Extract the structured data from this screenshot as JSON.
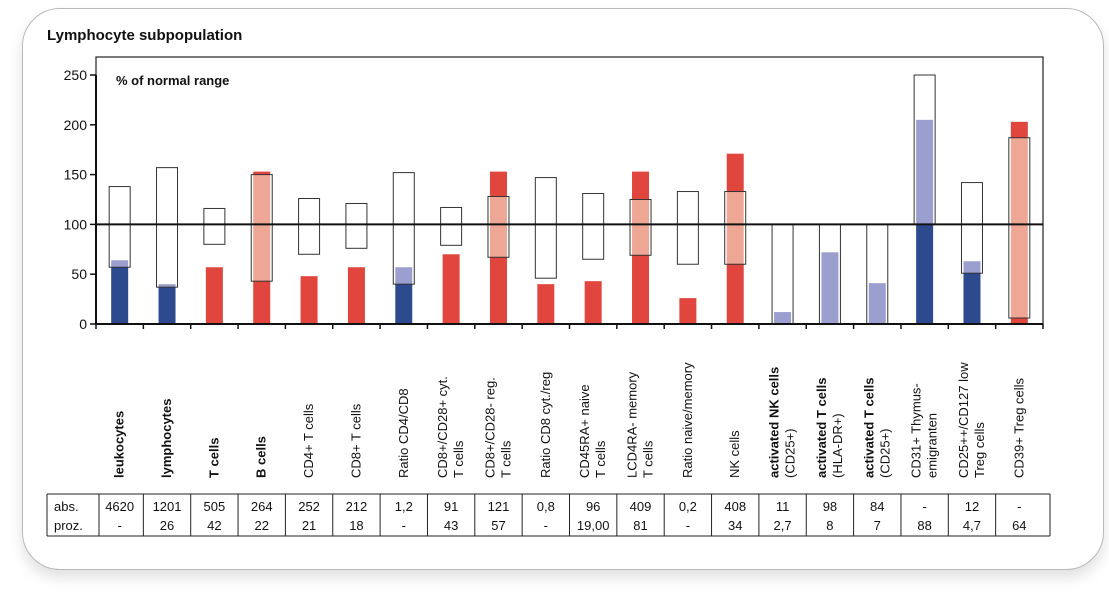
{
  "chart_data": {
    "type": "bar",
    "title": "Lymphocyte subpopulation",
    "ylabel": "% of normal range",
    "ylim": [
      0,
      250
    ],
    "yticks": [
      0,
      50,
      100,
      150,
      200,
      250
    ],
    "reference_line": 100,
    "colors": {
      "low": "#2e4a8f",
      "low_light": "#9b9fcf",
      "high": "#e0453e",
      "high_light": "#eea795",
      "range_border": "#333333"
    },
    "categories": [
      {
        "label": [
          "leukocytes"
        ],
        "bold": [
          true
        ],
        "value": 64,
        "status": "low",
        "range": [
          57,
          138
        ],
        "abs": "4620",
        "proz": "-"
      },
      {
        "label": [
          "lymphocytes"
        ],
        "bold": [
          true
        ],
        "value": 40,
        "status": "low",
        "range": [
          37,
          157
        ],
        "abs": "1201",
        "proz": "26"
      },
      {
        "label": [
          "T cells"
        ],
        "bold": [
          true
        ],
        "value": 57,
        "status": "high",
        "range": [
          80,
          116
        ],
        "abs": "505",
        "proz": "42"
      },
      {
        "label": [
          "B cells"
        ],
        "bold": [
          true
        ],
        "value": 153,
        "status": "high",
        "range": [
          43,
          150
        ],
        "abs": "264",
        "proz": "22"
      },
      {
        "label": [
          "CD4+ T cells"
        ],
        "bold": [
          false
        ],
        "value": 48,
        "status": "high",
        "range": [
          70,
          126
        ],
        "abs": "252",
        "proz": "21"
      },
      {
        "label": [
          "CD8+ T cells"
        ],
        "bold": [
          false
        ],
        "value": 57,
        "status": "high",
        "range": [
          76,
          121
        ],
        "abs": "212",
        "proz": "18"
      },
      {
        "label": [
          "Ratio CD4/CD8"
        ],
        "bold": [
          false
        ],
        "value": 57,
        "status": "low",
        "range": [
          40,
          152
        ],
        "abs": "1,2",
        "proz": "-"
      },
      {
        "label": [
          "CD8+/CD28+ cyt.",
          "T cells"
        ],
        "bold": [
          false,
          false
        ],
        "value": 70,
        "status": "high",
        "range": [
          79,
          117
        ],
        "abs": "91",
        "proz": "43"
      },
      {
        "label": [
          "CD8+/CD28- reg.",
          "T cells"
        ],
        "bold": [
          false,
          false
        ],
        "value": 153,
        "status": "high",
        "range": [
          67,
          128
        ],
        "abs": "121",
        "proz": "57"
      },
      {
        "label": [
          "Ratio CD8 cyt./reg"
        ],
        "bold": [
          false
        ],
        "value": 40,
        "status": "high",
        "range": [
          46,
          147
        ],
        "abs": "0,8",
        "proz": "-"
      },
      {
        "label": [
          "CD45RA+ naive",
          "T cells"
        ],
        "bold": [
          false,
          false
        ],
        "value": 43,
        "status": "high",
        "range": [
          65,
          131
        ],
        "abs": "96",
        "proz": "19,00"
      },
      {
        "label": [
          "LCD4RA- memory",
          "T cells"
        ],
        "bold": [
          false,
          false
        ],
        "value": 153,
        "status": "high",
        "range": [
          69,
          125
        ],
        "abs": "409",
        "proz": "81"
      },
      {
        "label": [
          "Ratio naive/memory"
        ],
        "bold": [
          false
        ],
        "value": 26,
        "status": "high",
        "range": [
          60,
          133
        ],
        "abs": "0,2",
        "proz": "-"
      },
      {
        "label": [
          "NK cells"
        ],
        "bold": [
          false
        ],
        "value": 171,
        "status": "high",
        "range": [
          60,
          133
        ],
        "abs": "408",
        "proz": "34"
      },
      {
        "label": [
          "activated NK cells",
          "(CD25+)"
        ],
        "bold": [
          true,
          false
        ],
        "value": 12,
        "status": "low",
        "range": [
          0,
          100
        ],
        "abs": "11",
        "proz": "2,7"
      },
      {
        "label": [
          "activated T cells",
          "(HLA-DR+)"
        ],
        "bold": [
          true,
          false
        ],
        "value": 72,
        "status": "low",
        "range": [
          0,
          100
        ],
        "abs": "98",
        "proz": "8"
      },
      {
        "label": [
          "activated T cells",
          "(CD25+)"
        ],
        "bold": [
          true,
          false
        ],
        "value": 41,
        "status": "low",
        "range": [
          0,
          100
        ],
        "abs": "84",
        "proz": "7"
      },
      {
        "label": [
          "CD31+ Thymus-",
          "emigranten"
        ],
        "bold": [
          false,
          false
        ],
        "value": 205,
        "status": "low",
        "range": [
          100,
          250
        ],
        "abs": "-",
        "proz": "88"
      },
      {
        "label": [
          "CD25++/CD127 low",
          "Treg cells"
        ],
        "bold": [
          false,
          false
        ],
        "value": 63,
        "status": "low",
        "range": [
          51,
          142
        ],
        "abs": "12",
        "proz": "4,7"
      },
      {
        "label": [
          "CD39+ Treg cells"
        ],
        "bold": [
          false
        ],
        "value": 203,
        "status": "high",
        "range": [
          6,
          187
        ],
        "abs": "-",
        "proz": "64"
      }
    ],
    "table_row_labels": [
      "abs.",
      "proz."
    ]
  }
}
